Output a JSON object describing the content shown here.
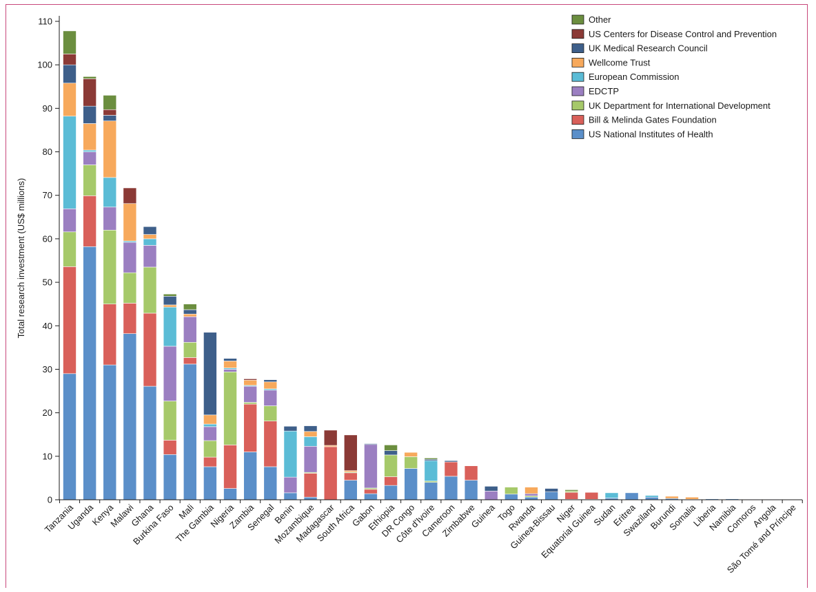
{
  "chart_data": {
    "type": "bar",
    "stacked": true,
    "ylabel": "Total research investment (US$ millions)",
    "xlabel": "",
    "ylim": [
      0,
      110
    ],
    "yticks": [
      0,
      10,
      20,
      30,
      40,
      50,
      60,
      70,
      80,
      90,
      100,
      110
    ],
    "grid": false,
    "legend_position": "top-right",
    "categories": [
      "Tanzania",
      "Uganda",
      "Kenya",
      "Malawi",
      "Ghana",
      "Burkina Faso",
      "Mali",
      "The Gambia",
      "Nigeria",
      "Zambia",
      "Senegal",
      "Benin",
      "Mozambique",
      "Madagascar",
      "South Africa",
      "Gabon",
      "Ethiopia",
      "DR Congo",
      "Côte d'Ivoire",
      "Cameroon",
      "Zimbabwe",
      "Guinea",
      "Togo",
      "Rwanda",
      "Guinea-Bissau",
      "Niger",
      "Equatorial Guinea",
      "Sudan",
      "Eritrea",
      "Swaziland",
      "Burundi",
      "Somalia",
      "Liberia",
      "Namibia",
      "Comoros",
      "Angola",
      "São Tomé and Príncipe"
    ],
    "series": [
      {
        "name": "US National Institutes of Health",
        "color": "#5b8fc9",
        "values": [
          29.0,
          58.2,
          31.0,
          38.2,
          26.1,
          10.4,
          31.2,
          7.6,
          2.6,
          11.0,
          7.6,
          1.6,
          0.6,
          0,
          4.5,
          1.4,
          3.3,
          7.2,
          4.0,
          5.4,
          4.5,
          0,
          1.3,
          0.6,
          1.8,
          0.1,
          0.1,
          0.4,
          1.6,
          0.6,
          0.3,
          0.1,
          0.2,
          0.2,
          0.1,
          0.1,
          0
        ]
      },
      {
        "name": "Bill & Melinda Gates Foundation",
        "color": "#d9605a",
        "values": [
          24.6,
          11.7,
          14.0,
          7.0,
          16.8,
          3.3,
          1.5,
          2.2,
          10.0,
          11.0,
          10.5,
          0,
          5.5,
          12.2,
          1.7,
          1.0,
          2.0,
          0,
          0,
          3.3,
          3.3,
          0,
          0,
          0,
          0,
          1.6,
          1.6,
          0,
          0,
          0,
          0,
          0,
          0,
          0,
          0,
          0,
          0
        ]
      },
      {
        "name": "UK Department for International Development",
        "color": "#a6c96a",
        "values": [
          8.0,
          7.1,
          17.0,
          7.0,
          10.6,
          9.0,
          3.5,
          3.8,
          16.8,
          0.4,
          3.5,
          0,
          0.2,
          0,
          0.2,
          0.3,
          5.0,
          2.7,
          0.3,
          0,
          0,
          0,
          1.6,
          0.3,
          0,
          0.3,
          0,
          0,
          0,
          0,
          0,
          0,
          0,
          0,
          0,
          0,
          0
        ]
      },
      {
        "name": "EDCTP",
        "color": "#9b7fc1",
        "values": [
          5.3,
          3.0,
          5.3,
          7.0,
          5.0,
          12.6,
          5.9,
          3.2,
          0.6,
          3.7,
          3.6,
          3.6,
          6.0,
          0,
          0,
          10.0,
          0,
          0,
          0,
          0,
          0,
          2.0,
          0,
          0.5,
          0,
          0,
          0,
          0,
          0,
          0,
          0,
          0,
          0,
          0,
          0,
          0,
          0
        ]
      },
      {
        "name": "European Commission",
        "color": "#5bbcd6",
        "values": [
          21.3,
          0.4,
          6.8,
          0.3,
          1.5,
          9.0,
          0,
          0.6,
          0.3,
          0.2,
          0.3,
          10.6,
          2.2,
          0,
          0,
          0,
          0,
          0,
          4.7,
          0,
          0,
          0,
          0,
          0,
          0,
          0,
          0,
          1.2,
          0,
          0.4,
          0,
          0,
          0,
          0,
          0,
          0,
          0
        ]
      },
      {
        "name": "Wellcome Trust",
        "color": "#f7a95c",
        "values": [
          7.6,
          6.1,
          13.0,
          8.6,
          1.0,
          0.5,
          0.6,
          2.1,
          1.6,
          1.2,
          1.6,
          0,
          1.2,
          0.3,
          0.3,
          0,
          0,
          1.0,
          0,
          0,
          0,
          0,
          0,
          1.5,
          0,
          0,
          0,
          0,
          0,
          0,
          0.5,
          0.5,
          0,
          0,
          0,
          0,
          0
        ]
      },
      {
        "name": "UK Medical Research Council",
        "color": "#3e5f8a",
        "values": [
          4.2,
          4.0,
          1.3,
          0,
          1.8,
          2.0,
          1.0,
          19.0,
          0.6,
          0,
          0.5,
          1.1,
          1.3,
          0,
          0,
          0.2,
          1.0,
          0,
          0.3,
          0.3,
          0,
          1.1,
          0,
          0,
          0.8,
          0,
          0,
          0,
          0,
          0,
          0,
          0,
          0,
          0,
          0,
          0,
          0
        ]
      },
      {
        "name": "US Centers for Disease Control and Prevention",
        "color": "#8b3a36",
        "values": [
          2.5,
          6.3,
          1.3,
          3.6,
          0,
          0,
          0,
          0,
          0,
          0.3,
          0,
          0,
          0,
          3.5,
          8.2,
          0,
          0,
          0,
          0,
          0,
          0,
          0,
          0,
          0,
          0,
          0,
          0,
          0,
          0,
          0,
          0,
          0,
          0,
          0,
          0,
          0,
          0
        ]
      },
      {
        "name": "Other",
        "color": "#6b8e3f",
        "values": [
          5.3,
          0.5,
          3.3,
          0,
          0,
          0.5,
          1.3,
          0,
          0,
          0,
          0,
          0,
          0,
          0,
          0,
          0,
          1.3,
          0,
          0.3,
          0,
          0,
          0,
          0,
          0,
          0,
          0.3,
          0,
          0,
          0,
          0,
          0,
          0,
          0,
          0,
          0,
          0,
          0
        ]
      }
    ],
    "legend_order": [
      "Other",
      "US Centers for Disease Control and Prevention",
      "UK Medical Research Council",
      "Wellcome Trust",
      "European Commission",
      "EDCTP",
      "UK Department for International Development",
      "Bill & Melinda Gates Foundation",
      "US National Institutes of Health"
    ]
  }
}
